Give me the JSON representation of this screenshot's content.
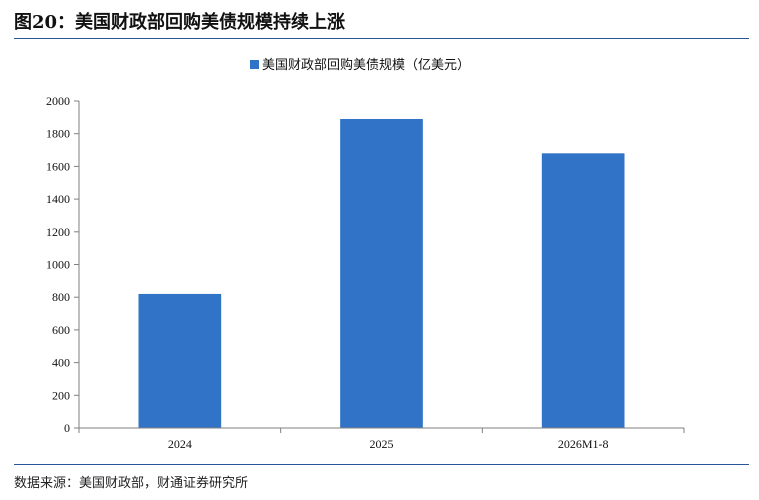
{
  "title": "图20：美国财政部回购美债规模持续上涨",
  "source": "数据来源：美国财政部，财通证券研究所",
  "chart_data": {
    "type": "bar",
    "categories": [
      "2024",
      "2025",
      "2026M1-8"
    ],
    "series": [
      {
        "name": "美国财政部回购美债规模（亿美元）",
        "values": [
          820,
          1890,
          1680
        ],
        "color": "#3174c7"
      }
    ],
    "ylim": [
      0,
      2000
    ],
    "yticks": [
      0,
      200,
      400,
      600,
      800,
      1000,
      1200,
      1400,
      1600,
      1800,
      2000
    ],
    "grid": false,
    "legend": "top-center"
  }
}
